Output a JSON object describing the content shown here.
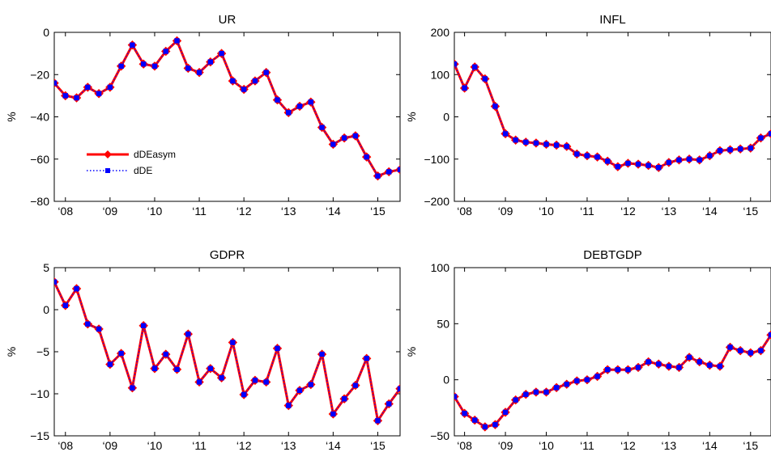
{
  "chart_data": [
    {
      "type": "line",
      "title": "UR",
      "ylabel": "%",
      "xlabel": "",
      "ylim": [
        -80,
        0
      ],
      "yticks": [
        0,
        -20,
        -40,
        -60,
        -80
      ],
      "ytick_labels": [
        "0",
        "−20",
        "−40",
        "−60",
        "−80"
      ],
      "xlim": [
        0,
        31
      ],
      "xticks": [
        1,
        5,
        9,
        13,
        17,
        21,
        25,
        29
      ],
      "xtick_labels": [
        "‘08",
        "‘09",
        "‘10",
        "‘11",
        "‘12",
        "‘13",
        "‘14",
        "‘15"
      ],
      "x": [
        0,
        1,
        2,
        3,
        4,
        5,
        6,
        7,
        8,
        9,
        10,
        11,
        12,
        13,
        14,
        15,
        16,
        17,
        18,
        19,
        20,
        21,
        22,
        23,
        24,
        25,
        26,
        27,
        28,
        29,
        30,
        31
      ],
      "series": [
        {
          "name": "dDEasym",
          "color": "#ff0000",
          "style": "solid-diamond",
          "values": [
            -24,
            -30,
            -31,
            -26,
            -29,
            -26,
            -16,
            -6,
            -15,
            -16,
            -9,
            -4,
            -17,
            -19,
            -14,
            -10,
            -23,
            -27,
            -23,
            -19,
            -32,
            -38,
            -35,
            -33,
            -45,
            -53,
            -50,
            -49,
            -59,
            -68,
            -66,
            -65
          ]
        },
        {
          "name": "dDE",
          "color": "#0000ff",
          "style": "dotted-square",
          "values": [
            -24,
            -30,
            -31,
            -26,
            -29,
            -26,
            -16,
            -6,
            -15,
            -16,
            -9,
            -4,
            -17,
            -19,
            -14,
            -10,
            -23,
            -27,
            -23,
            -19,
            -32,
            -38,
            -35,
            -33,
            -45,
            -53,
            -50,
            -49,
            -59,
            -68,
            -66,
            -65
          ]
        }
      ],
      "legend": {
        "placement": "lower-left",
        "entries": [
          "dDEasym",
          "dDE"
        ]
      }
    },
    {
      "type": "line",
      "title": "INFL",
      "ylabel": "%",
      "xlabel": "",
      "ylim": [
        -200,
        200
      ],
      "yticks": [
        200,
        100,
        0,
        -100,
        -200
      ],
      "ytick_labels": [
        "200",
        "100",
        "0",
        "−100",
        "−200"
      ],
      "xlim": [
        0,
        31
      ],
      "xticks": [
        1,
        5,
        9,
        13,
        17,
        21,
        25,
        29
      ],
      "xtick_labels": [
        "‘08",
        "‘09",
        "‘10",
        "‘11",
        "‘12",
        "‘13",
        "‘14",
        "‘15"
      ],
      "x": [
        0,
        1,
        2,
        3,
        4,
        5,
        6,
        7,
        8,
        9,
        10,
        11,
        12,
        13,
        14,
        15,
        16,
        17,
        18,
        19,
        20,
        21,
        22,
        23,
        24,
        25,
        26,
        27,
        28,
        29,
        30,
        31
      ],
      "series": [
        {
          "name": "dDEasym",
          "color": "#ff0000",
          "style": "solid-diamond",
          "values": [
            125,
            68,
            118,
            90,
            25,
            -40,
            -55,
            -60,
            -62,
            -65,
            -67,
            -70,
            -88,
            -92,
            -95,
            -105,
            -118,
            -110,
            -112,
            -115,
            -120,
            -108,
            -102,
            -100,
            -102,
            -92,
            -80,
            -78,
            -76,
            -74,
            -50,
            -40
          ]
        },
        {
          "name": "dDE",
          "color": "#0000ff",
          "style": "dotted-square",
          "values": [
            125,
            68,
            118,
            90,
            25,
            -40,
            -55,
            -60,
            -62,
            -65,
            -67,
            -70,
            -88,
            -92,
            -95,
            -105,
            -118,
            -110,
            -112,
            -115,
            -120,
            -108,
            -102,
            -100,
            -102,
            -92,
            -80,
            -78,
            -76,
            -74,
            -50,
            -40
          ]
        }
      ]
    },
    {
      "type": "line",
      "title": "GDPR",
      "ylabel": "%",
      "xlabel": "",
      "ylim": [
        -15,
        5
      ],
      "yticks": [
        5,
        0,
        -5,
        -10,
        -15
      ],
      "ytick_labels": [
        "5",
        "0",
        "−5",
        "−10",
        "−15"
      ],
      "xlim": [
        0,
        31
      ],
      "xticks": [
        1,
        5,
        9,
        13,
        17,
        21,
        25,
        29
      ],
      "xtick_labels": [
        "‘08",
        "‘09",
        "‘10",
        "‘11",
        "‘12",
        "‘13",
        "‘14",
        "‘15"
      ],
      "x": [
        0,
        1,
        2,
        3,
        4,
        5,
        6,
        7,
        8,
        9,
        10,
        11,
        12,
        13,
        14,
        15,
        16,
        17,
        18,
        19,
        20,
        21,
        22,
        23,
        24,
        25,
        26,
        27,
        28,
        29,
        30,
        31
      ],
      "series": [
        {
          "name": "dDEasym",
          "color": "#ff0000",
          "style": "solid-diamond",
          "values": [
            3.3,
            0.5,
            2.5,
            -1.7,
            -2.3,
            -6.5,
            -5.2,
            -9.3,
            -1.9,
            -7,
            -5.3,
            -7.1,
            -2.9,
            -8.6,
            -7,
            -8.1,
            -3.9,
            -10.1,
            -8.4,
            -8.6,
            -4.6,
            -11.4,
            -9.6,
            -8.9,
            -5.3,
            -12.4,
            -10.6,
            -9,
            -5.8,
            -13.2,
            -11.2,
            -9.4
          ]
        },
        {
          "name": "dDE",
          "color": "#0000ff",
          "style": "dotted-square",
          "values": [
            3.3,
            0.5,
            2.5,
            -1.7,
            -2.3,
            -6.5,
            -5.2,
            -9.3,
            -1.9,
            -7,
            -5.3,
            -7.1,
            -2.9,
            -8.6,
            -7,
            -8.1,
            -3.9,
            -10.1,
            -8.4,
            -8.6,
            -4.6,
            -11.4,
            -9.6,
            -8.9,
            -5.3,
            -12.4,
            -10.6,
            -9,
            -5.8,
            -13.2,
            -11.2,
            -9.4
          ]
        }
      ]
    },
    {
      "type": "line",
      "title": "DEBTGDP",
      "ylabel": "%",
      "xlabel": "",
      "ylim": [
        -50,
        100
      ],
      "yticks": [
        100,
        50,
        0,
        -50
      ],
      "ytick_labels": [
        "100",
        "50",
        "0",
        "−50"
      ],
      "xlim": [
        0,
        31
      ],
      "xticks": [
        1,
        5,
        9,
        13,
        17,
        21,
        25,
        29
      ],
      "xtick_labels": [
        "‘08",
        "‘09",
        "‘10",
        "‘11",
        "‘12",
        "‘13",
        "‘14",
        "‘15"
      ],
      "x": [
        0,
        1,
        2,
        3,
        4,
        5,
        6,
        7,
        8,
        9,
        10,
        11,
        12,
        13,
        14,
        15,
        16,
        17,
        18,
        19,
        20,
        21,
        22,
        23,
        24,
        25,
        26,
        27,
        28,
        29,
        30,
        31
      ],
      "series": [
        {
          "name": "dDEasym",
          "color": "#ff0000",
          "style": "solid-diamond",
          "values": [
            -15,
            -30,
            -36,
            -42,
            -40,
            -29,
            -18,
            -13,
            -11,
            -11,
            -7,
            -4,
            -1,
            0,
            3,
            9,
            9,
            9,
            11,
            16,
            14,
            12,
            11,
            20,
            16,
            13,
            12,
            29,
            26,
            24,
            26,
            40
          ]
        },
        {
          "name": "dDE",
          "color": "#0000ff",
          "style": "dotted-square",
          "values": [
            -15,
            -30,
            -36,
            -42,
            -40,
            -29,
            -18,
            -13,
            -11,
            -11,
            -7,
            -4,
            -1,
            0,
            3,
            9,
            9,
            9,
            11,
            16,
            14,
            12,
            11,
            20,
            16,
            13,
            12,
            29,
            26,
            24,
            26,
            40
          ]
        }
      ]
    }
  ]
}
